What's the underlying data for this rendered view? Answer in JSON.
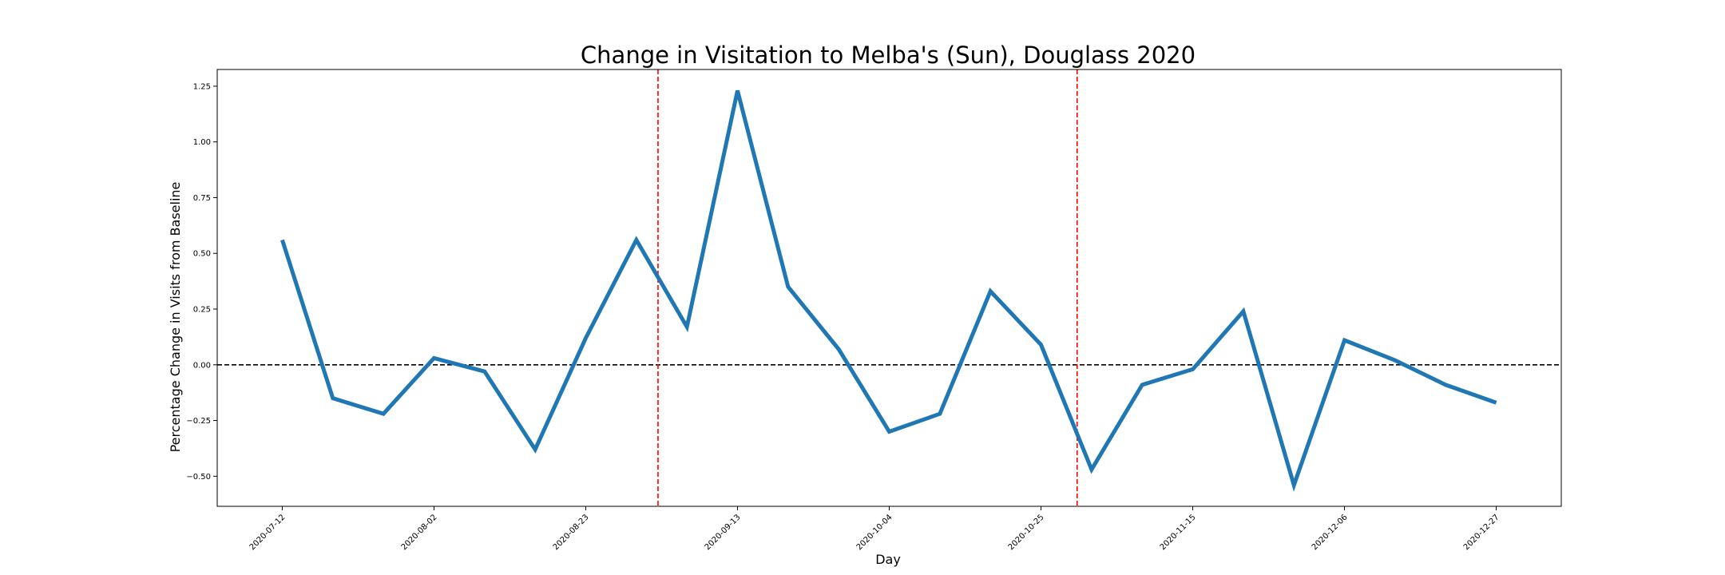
{
  "chart_data": {
    "type": "line",
    "title": "Change in Visitation to Melba's (Sun), Douglass 2020",
    "xlabel": "Day",
    "ylabel": "Percentage Change in Visits from Baseline",
    "x": [
      "2020-07-12",
      "2020-07-19",
      "2020-07-26",
      "2020-08-02",
      "2020-08-09",
      "2020-08-16",
      "2020-08-23",
      "2020-08-30",
      "2020-09-06",
      "2020-09-13",
      "2020-09-20",
      "2020-09-27",
      "2020-10-04",
      "2020-10-11",
      "2020-10-18",
      "2020-10-25",
      "2020-11-01",
      "2020-11-08",
      "2020-11-15",
      "2020-11-22",
      "2020-11-29",
      "2020-12-06",
      "2020-12-13",
      "2020-12-20",
      "2020-12-27"
    ],
    "series": [
      {
        "values": [
          0.56,
          -0.15,
          -0.22,
          0.03,
          -0.03,
          -0.38,
          0.12,
          0.56,
          0.17,
          1.23,
          0.35,
          0.07,
          -0.3,
          -0.22,
          0.33,
          0.09,
          -0.47,
          -0.09,
          -0.02,
          0.24,
          -0.54,
          0.11,
          0.02,
          -0.09,
          -0.17
        ],
        "color": "#1f77b4"
      }
    ],
    "xticks": [
      "2020-07-12",
      "2020-08-02",
      "2020-08-23",
      "2020-09-13",
      "2020-10-04",
      "2020-10-25",
      "2020-11-15",
      "2020-12-06",
      "2020-12-27"
    ],
    "yticks": [
      -0.5,
      -0.25,
      0.0,
      0.25,
      0.5,
      0.75,
      1.0,
      1.25
    ],
    "ytick_labels": [
      "−0.50",
      "−0.25",
      "0.00",
      "0.25",
      "0.50",
      "0.75",
      "1.00",
      "1.25"
    ],
    "xlim": [
      "2020-07-03",
      "2021-01-05"
    ],
    "ylim": [
      -0.635,
      1.325
    ],
    "reference_lines": [
      {
        "orientation": "horizontal",
        "value": 0.0,
        "color": "#000000",
        "style": "dashed"
      },
      {
        "orientation": "vertical",
        "value": "2020-09-02",
        "color": "#ff0000",
        "style": "dashed"
      },
      {
        "orientation": "vertical",
        "value": "2020-10-30",
        "color": "#ff0000",
        "style": "dashed"
      }
    ],
    "grid": false,
    "legend": "none"
  }
}
